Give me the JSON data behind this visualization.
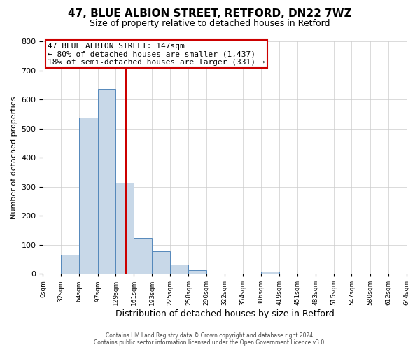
{
  "title": "47, BLUE ALBION STREET, RETFORD, DN22 7WZ",
  "subtitle": "Size of property relative to detached houses in Retford",
  "xlabel": "Distribution of detached houses by size in Retford",
  "ylabel": "Number of detached properties",
  "footer_line1": "Contains HM Land Registry data © Crown copyright and database right 2024.",
  "footer_line2": "Contains public sector information licensed under the Open Government Licence v3.0.",
  "annotation_line1": "47 BLUE ALBION STREET: 147sqm",
  "annotation_line2": "← 80% of detached houses are smaller (1,437)",
  "annotation_line3": "18% of semi-detached houses are larger (331) →",
  "bar_edges": [
    0,
    32,
    64,
    97,
    129,
    161,
    193,
    225,
    258,
    290,
    322,
    354,
    386,
    419,
    451,
    483,
    515,
    547,
    580,
    612,
    644
  ],
  "bar_heights": [
    0,
    65,
    537,
    635,
    313,
    122,
    77,
    32,
    12,
    0,
    0,
    0,
    8,
    0,
    0,
    0,
    0,
    0,
    0,
    0
  ],
  "bar_color": "#c8d8e8",
  "bar_edge_color": "#5588bb",
  "reference_line_x": 147,
  "reference_line_color": "#cc0000",
  "ylim": [
    0,
    800
  ],
  "yticks": [
    0,
    100,
    200,
    300,
    400,
    500,
    600,
    700,
    800
  ],
  "tick_labels": [
    "0sqm",
    "32sqm",
    "64sqm",
    "97sqm",
    "129sqm",
    "161sqm",
    "193sqm",
    "225sqm",
    "258sqm",
    "290sqm",
    "322sqm",
    "354sqm",
    "386sqm",
    "419sqm",
    "451sqm",
    "483sqm",
    "515sqm",
    "547sqm",
    "580sqm",
    "612sqm",
    "644sqm"
  ],
  "grid_color": "#cccccc",
  "bg_color": "#ffffff",
  "annotation_box_edge_color": "#cc0000",
  "title_fontsize": 11,
  "subtitle_fontsize": 9
}
